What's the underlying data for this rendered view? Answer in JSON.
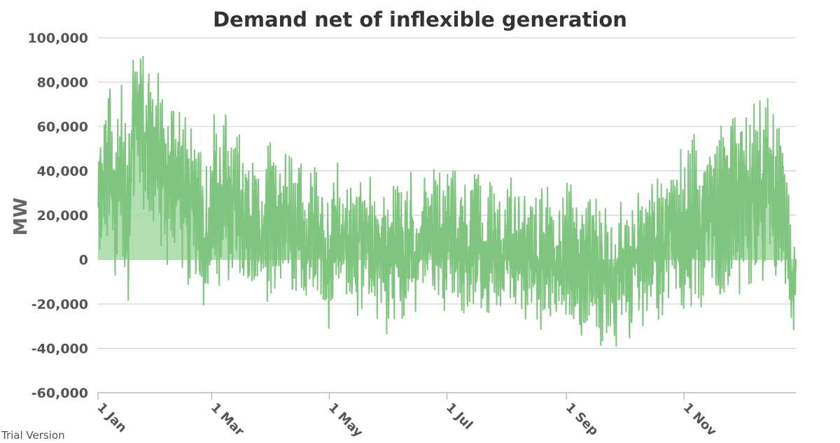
{
  "chart_data": {
    "type": "area",
    "title": "Demand net of inflexible generation",
    "xlabel": "",
    "ylabel": "MW",
    "ylim": [
      -60000,
      100000
    ],
    "yticks": [
      {
        "value": 100000,
        "label": "100,000"
      },
      {
        "value": 80000,
        "label": "80,000"
      },
      {
        "value": 60000,
        "label": "60,000"
      },
      {
        "value": 40000,
        "label": "40,000"
      },
      {
        "value": 20000,
        "label": "20,000"
      },
      {
        "value": 0,
        "label": "0"
      },
      {
        "value": -20000,
        "label": "-20,000"
      },
      {
        "value": -40000,
        "label": "-40,000"
      },
      {
        "value": -60000,
        "label": "-60,000"
      }
    ],
    "xlim_day": [
      0,
      362
    ],
    "xticks": [
      {
        "day": 0,
        "label": "1 Jan"
      },
      {
        "day": 59,
        "label": "1 Mar"
      },
      {
        "day": 120,
        "label": "1 May"
      },
      {
        "day": 181,
        "label": "1 Jul"
      },
      {
        "day": 243,
        "label": "1 Sep"
      },
      {
        "day": 304,
        "label": "1 Nov"
      }
    ],
    "grid": true,
    "legend": "none",
    "series_color": "#7fc47f",
    "fill_color": "#a9dba9",
    "series": [
      {
        "x_day": [
          0,
          3,
          6,
          9,
          12,
          15,
          18,
          21,
          24,
          27,
          30,
          33,
          36,
          39,
          42,
          45,
          48,
          51,
          54,
          57,
          60,
          63,
          66,
          69,
          72,
          75,
          78,
          81,
          84,
          87,
          90,
          93,
          96,
          99,
          102,
          105,
          108,
          111,
          114,
          117,
          120,
          123,
          126,
          129,
          132,
          135,
          138,
          141,
          144,
          147,
          150,
          153,
          156,
          159,
          162,
          165,
          168,
          171,
          174,
          177,
          180,
          183,
          186,
          189,
          192,
          195,
          198,
          201,
          204,
          207,
          210,
          213,
          216,
          219,
          222,
          225,
          228,
          231,
          234,
          237,
          240,
          243,
          246,
          249,
          252,
          255,
          258,
          261,
          264,
          267,
          270,
          273,
          276,
          279,
          282,
          285,
          288,
          291,
          294,
          297,
          300,
          303,
          306,
          309,
          312,
          315,
          318,
          321,
          324,
          327,
          330,
          333,
          336,
          339,
          342,
          345,
          348,
          351,
          354,
          357,
          360,
          362
        ],
        "values": [
          20000,
          35000,
          45000,
          25000,
          40000,
          10000,
          55000,
          70000,
          60000,
          48000,
          52000,
          42000,
          30000,
          40000,
          38000,
          28000,
          22000,
          25000,
          15000,
          8000,
          35000,
          18000,
          30000,
          22000,
          28000,
          20000,
          12000,
          18000,
          10000,
          14000,
          20000,
          8000,
          22000,
          15000,
          10000,
          16000,
          4000,
          18000,
          12000,
          8000,
          -2000,
          14000,
          10000,
          6000,
          12000,
          4000,
          10000,
          8000,
          2000,
          6000,
          -5000,
          4000,
          8000,
          2000,
          10000,
          -4000,
          12000,
          14000,
          18000,
          10000,
          6000,
          14000,
          10000,
          8000,
          4000,
          12000,
          6000,
          -2000,
          8000,
          2000,
          -6000,
          10000,
          4000,
          -2000,
          6000,
          8000,
          -4000,
          4000,
          6000,
          0,
          -8000,
          4000,
          2000,
          -6000,
          -2000,
          -4000,
          2000,
          -8000,
          -2000,
          -10000,
          -6000,
          -4000,
          -8000,
          2000,
          -2000,
          6000,
          10000,
          4000,
          8000,
          12000,
          16000,
          14000,
          10000,
          18000,
          12000,
          22000,
          20000,
          16000,
          24000,
          20000,
          28000,
          24000,
          30000,
          26000,
          34000,
          28000,
          40000,
          22000,
          30000,
          10000,
          -12000,
          -8000
        ],
        "amplitudes": [
          22000,
          28000,
          30000,
          30000,
          32000,
          34000,
          30000,
          28000,
          30000,
          30000,
          30000,
          28000,
          30000,
          28000,
          28000,
          28000,
          28000,
          28000,
          28000,
          26000,
          26000,
          28000,
          28000,
          28000,
          26000,
          26000,
          26000,
          26000,
          26000,
          26000,
          26000,
          26000,
          26000,
          26000,
          26000,
          24000,
          26000,
          26000,
          26000,
          24000,
          24000,
          24000,
          24000,
          24000,
          24000,
          24000,
          24000,
          24000,
          24000,
          24000,
          24000,
          24000,
          24000,
          24000,
          24000,
          24000,
          24000,
          24000,
          24000,
          24000,
          24000,
          24000,
          24000,
          24000,
          24000,
          24000,
          24000,
          24000,
          24000,
          24000,
          24000,
          24000,
          24000,
          24000,
          24000,
          24000,
          24000,
          24000,
          24000,
          24000,
          24000,
          24000,
          24000,
          24000,
          24000,
          24000,
          24000,
          24000,
          24000,
          24000,
          24000,
          24000,
          24000,
          24000,
          24000,
          24000,
          26000,
          26000,
          26000,
          28000,
          28000,
          30000,
          30000,
          30000,
          30000,
          30000,
          30000,
          30000,
          30000,
          30000,
          30000,
          30000,
          30000,
          30000,
          32000,
          32000,
          30000,
          30000,
          28000,
          26000,
          20000,
          16000
        ]
      }
    ]
  },
  "footer": {
    "trial_text": "Trial Version"
  }
}
